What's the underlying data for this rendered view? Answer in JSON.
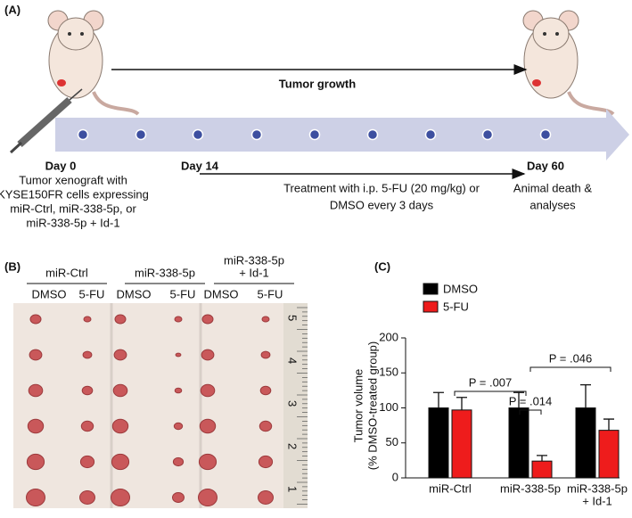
{
  "panel_a": {
    "label": "(A)",
    "arrow_label": "Tumor growth",
    "day0": "Day 0",
    "day14": "Day 14",
    "day60": "Day 60",
    "day0_text": [
      "Tumor xenograft with",
      "KYSE150FR cells expressing",
      "miR-Ctrl, miR-338-5p, or",
      "miR-338-5p + Id-1"
    ],
    "treatment": [
      "Treatment with i.p. 5-FU (20 mg/kg) or",
      "DMSO every 3 days"
    ],
    "end": [
      "Animal death &",
      "analyses"
    ]
  },
  "panel_b": {
    "label": "(B)",
    "groups": [
      [
        "miR-Ctrl"
      ],
      [
        "miR-338-5p"
      ],
      [
        "miR-338-5p",
        "+ Id-1"
      ]
    ],
    "columns": [
      "DMSO",
      "5-FU",
      "DMSO",
      "5-FU",
      "DMSO",
      "5-FU"
    ],
    "ruler": [
      "5",
      "4",
      "3",
      "2",
      "1"
    ]
  },
  "chart_data": {
    "type": "bar",
    "label": "(C)",
    "ylabel": [
      "Tumor volume",
      "(% DMSO-treated group)"
    ],
    "categories": [
      [
        "miR-Ctrl"
      ],
      [
        "miR-338-5p"
      ],
      [
        "miR-338-5p",
        "+ Id-1"
      ]
    ],
    "series": [
      {
        "name": "DMSO",
        "color": "#000000",
        "values": [
          100,
          100,
          100
        ],
        "errors": [
          22,
          22,
          33
        ]
      },
      {
        "name": "5-FU",
        "color": "#ee1c1c",
        "values": [
          97,
          24,
          68
        ],
        "errors": [
          18,
          8,
          16
        ]
      }
    ],
    "ylim": [
      0,
      200
    ],
    "yticks": [
      0,
      50,
      100,
      150,
      200
    ],
    "annotations": [
      "P = .007",
      "P = .014",
      "P = .046"
    ]
  }
}
